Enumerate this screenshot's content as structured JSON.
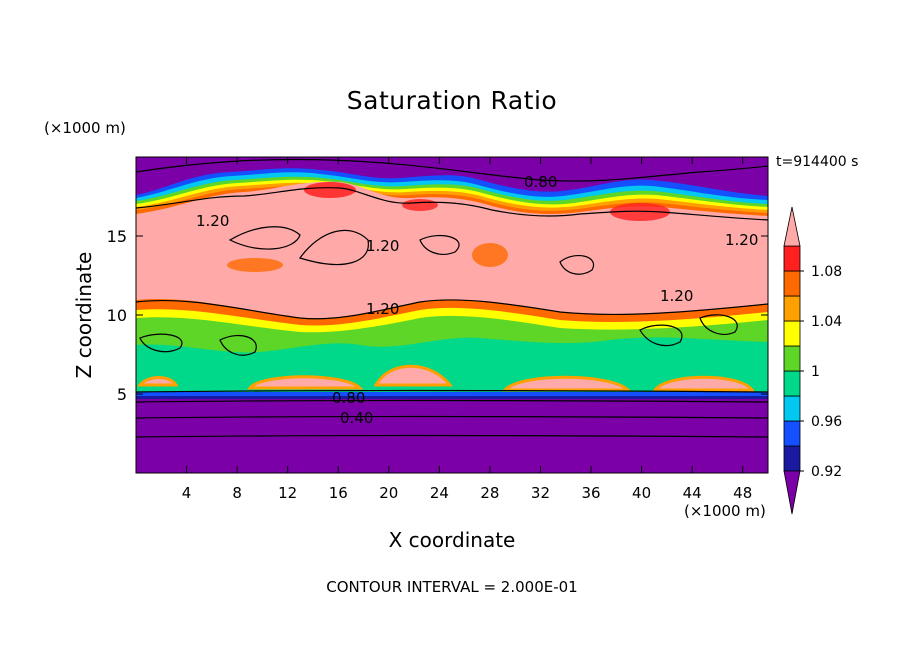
{
  "chart_data": {
    "type": "heatmap",
    "title": "Saturation Ratio",
    "xlabel": "X coordinate",
    "ylabel": "Z coordinate",
    "x_unit": "(×1000 m)",
    "z_unit": "(×1000 m)",
    "time_label": "t=914400 s",
    "footer": "CONTOUR INTERVAL = 2.000E-01",
    "xlim": [
      0,
      50
    ],
    "ylim": [
      0,
      20
    ],
    "x_ticks": [
      "4",
      "8",
      "12",
      "16",
      "20",
      "24",
      "28",
      "32",
      "36",
      "40",
      "44",
      "48"
    ],
    "y_ticks": [
      "5",
      "10",
      "15"
    ],
    "colorbar": {
      "tick_labels": [
        "1.08",
        "1.04",
        "1",
        "0.96",
        "0.92"
      ],
      "colors": [
        "#7b00a8",
        "#1a1aa0",
        "#1450ff",
        "#00c8f0",
        "#00d88a",
        "#5ed628",
        "#ffff00",
        "#ffa000",
        "#ff6a00",
        "#ff2020",
        "#ffaaa8"
      ]
    },
    "contour_labels": [
      "0.80",
      "1.20",
      "1.20",
      "1.20",
      "1.20",
      "1.20",
      "0.80",
      "0.40"
    ],
    "layers": [
      {
        "z": [
          18,
          20
        ],
        "value": "< 0.92"
      },
      {
        "z": [
          15.5,
          18
        ],
        "value": "0.92 – 1.10"
      },
      {
        "z": [
          11,
          16
        ],
        "value": "> 1.10"
      },
      {
        "z": [
          5,
          11
        ],
        "value": "0.96 – 1.10"
      },
      {
        "z": [
          0,
          5
        ],
        "value": "< 0.92"
      }
    ]
  }
}
